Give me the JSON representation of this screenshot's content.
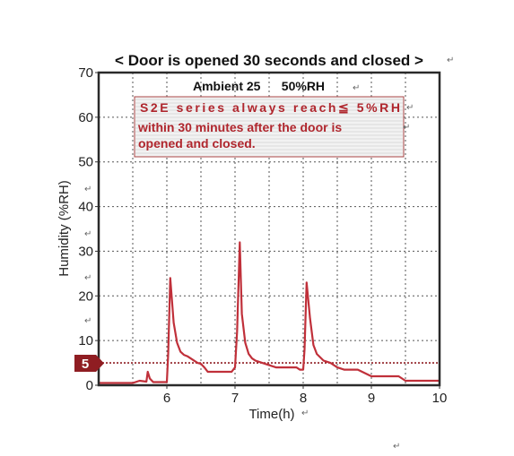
{
  "chart_data": {
    "type": "line",
    "title": "< Door is opened 30 seconds and closed >",
    "subtitle": "Ambient 25      50%RH",
    "annotation_lines": [
      "S2E series always reach≦ 5%RH",
      "within 30 minutes after the door is",
      "opened and closed."
    ],
    "xlabel": "Time(h)",
    "ylabel": "Humidity (%RH)",
    "xlim": [
      5,
      10
    ],
    "ylim": [
      0,
      70
    ],
    "x_ticks": [
      6,
      7,
      8,
      9,
      10
    ],
    "x_tick_labels": [
      "6",
      "7",
      "8",
      "9",
      "10"
    ],
    "y_ticks": [
      0,
      10,
      20,
      30,
      40,
      50,
      60,
      70
    ],
    "y_tick_labels": [
      "0",
      "10",
      "20",
      "30",
      "40",
      "50",
      "60",
      "70"
    ],
    "grid": true,
    "reference_line": {
      "y": 5,
      "label": "5"
    },
    "series": [
      {
        "color": "#c0303a",
        "x": [
          5.0,
          5.5,
          5.6,
          5.7,
          5.72,
          5.75,
          5.8,
          6.0,
          6.02,
          6.05,
          6.1,
          6.15,
          6.2,
          6.25,
          6.3,
          6.4,
          6.45,
          6.5,
          6.55,
          6.6,
          6.8,
          6.95,
          7.0,
          7.03,
          7.07,
          7.1,
          7.15,
          7.2,
          7.25,
          7.3,
          7.4,
          7.5,
          7.6,
          7.7,
          7.9,
          7.95,
          8.0,
          8.02,
          8.05,
          8.1,
          8.15,
          8.2,
          8.3,
          8.4,
          8.5,
          8.6,
          8.8,
          9.0,
          9.4,
          9.5,
          10.0
        ],
        "values": [
          0.5,
          0.5,
          1.0,
          0.8,
          3.0,
          1.5,
          0.7,
          0.7,
          7.0,
          24.0,
          14.0,
          9.5,
          7.5,
          6.8,
          6.5,
          5.5,
          5.0,
          4.8,
          4.0,
          3.0,
          3.0,
          3.0,
          4.0,
          12.0,
          32.0,
          16.0,
          9.5,
          7.0,
          6.0,
          5.5,
          5.0,
          4.5,
          4.0,
          4.0,
          4.0,
          3.5,
          3.5,
          8.0,
          23.0,
          15.0,
          9.0,
          7.0,
          5.5,
          5.0,
          4.0,
          3.5,
          3.5,
          2.0,
          2.0,
          1.0,
          1.0
        ]
      }
    ]
  }
}
